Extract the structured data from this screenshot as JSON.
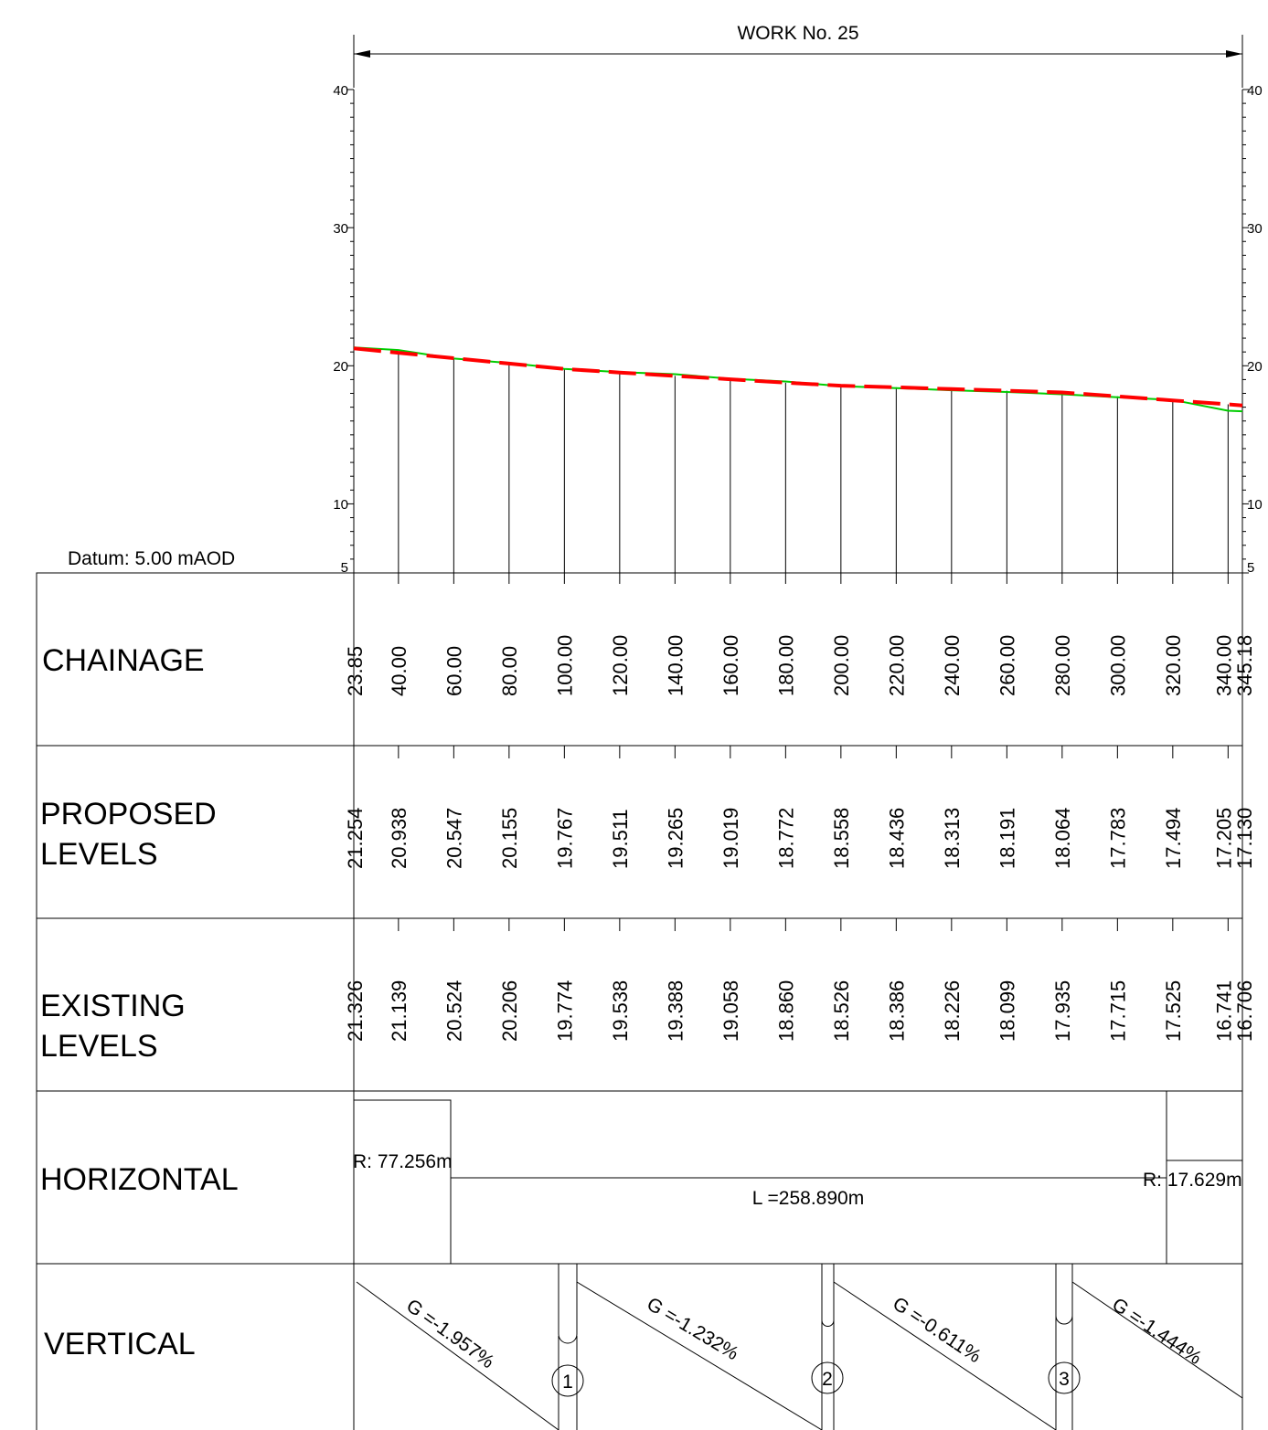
{
  "header": {
    "title": "WORK No. 25"
  },
  "datum": "Datum: 5.00 mAOD",
  "axis": {
    "major_ticks": [
      "40",
      "30",
      "20",
      "10",
      "5"
    ],
    "major_values": [
      40,
      30,
      20,
      10,
      5
    ]
  },
  "rows": {
    "chainage": "CHAINAGE",
    "proposed": [
      "PROPOSED",
      "LEVELS"
    ],
    "existing": [
      "EXISTING",
      "LEVELS"
    ],
    "horizontal": "HORIZONTAL",
    "vertical": "VERTICAL"
  },
  "chart_data": {
    "type": "line",
    "xlabel": "",
    "ylabel": "",
    "ylim": [
      5,
      40
    ],
    "xlim": [
      23.85,
      345.18
    ],
    "chainages": [
      "23.85",
      "40.00",
      "60.00",
      "80.00",
      "100.00",
      "120.00",
      "140.00",
      "160.00",
      "180.00",
      "200.00",
      "220.00",
      "240.00",
      "260.00",
      "280.00",
      "300.00",
      "320.00",
      "340.00",
      "345.18"
    ],
    "x": [
      23.85,
      40,
      60,
      80,
      100,
      120,
      140,
      160,
      180,
      200,
      220,
      240,
      260,
      280,
      300,
      320,
      340,
      345.18
    ],
    "series": [
      {
        "name": "",
        "color": "#ff0000",
        "style": "dashed",
        "labels": [
          "21.254",
          "20.938",
          "20.547",
          "20.155",
          "19.767",
          "19.511",
          "19.265",
          "19.019",
          "18.772",
          "18.558",
          "18.436",
          "18.313",
          "18.191",
          "18.064",
          "17.783",
          "17.494",
          "17.205",
          "17.130"
        ],
        "values": [
          21.254,
          20.938,
          20.547,
          20.155,
          19.767,
          19.511,
          19.265,
          19.019,
          18.772,
          18.558,
          18.436,
          18.313,
          18.191,
          18.064,
          17.783,
          17.494,
          17.205,
          17.13
        ]
      },
      {
        "name": "",
        "color": "#00cc00",
        "style": "solid",
        "labels": [
          "21.326",
          "21.139",
          "20.524",
          "20.206",
          "19.774",
          "19.538",
          "19.388",
          "19.058",
          "18.860",
          "18.526",
          "18.386",
          "18.226",
          "18.099",
          "17.935",
          "17.715",
          "17.525",
          "16.741",
          "16.706"
        ],
        "values": [
          21.326,
          21.139,
          20.524,
          20.206,
          19.774,
          19.538,
          19.388,
          19.058,
          18.86,
          18.526,
          18.386,
          18.226,
          18.099,
          17.935,
          17.715,
          17.525,
          16.741,
          16.706
        ]
      }
    ]
  },
  "horizontal": {
    "left_radius": "R: 77.256m",
    "length": "L =258.890m",
    "right_radius": "R: 17.629m"
  },
  "vertical": {
    "grades": [
      "G =-1.957%",
      "G =-1.232%",
      "G =-0.611%",
      "G =-1.444%"
    ],
    "markers": [
      "1",
      "2",
      "3"
    ]
  },
  "colors": {
    "proposed": "#ff0000",
    "existing": "#00cc00",
    "lines": "#000000"
  }
}
